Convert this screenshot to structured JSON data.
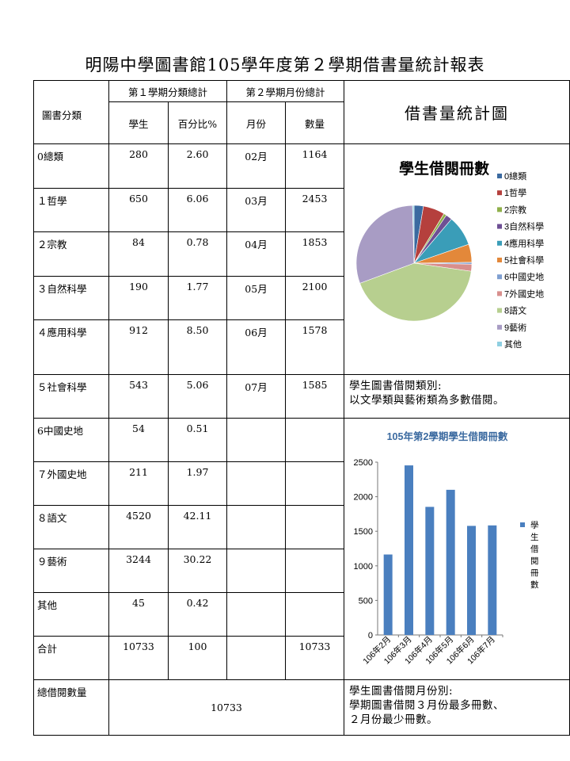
{
  "title": "明陽中學圖書館105學年度第２學期借書量統計報表",
  "table": {
    "col_category": "圖書分類",
    "sem1_header": "第１學期分類總計",
    "sem2_header": "第２學期月份總計",
    "col_students": "學生",
    "col_percent": "百分比%",
    "col_month": "月份",
    "col_count": "數量",
    "rows": [
      {
        "category": "0總類",
        "students": "280",
        "percent": "2.60",
        "month": "02月",
        "count": "1164"
      },
      {
        "category": "１哲學",
        "students": "650",
        "percent": "6.06",
        "month": "03月",
        "count": "2453"
      },
      {
        "category": "２宗教",
        "students": "84",
        "percent": "0.78",
        "month": "04月",
        "count": "1853"
      },
      {
        "category": "３自然科學",
        "students": "190",
        "percent": "1.77",
        "month": "05月",
        "count": "2100"
      },
      {
        "category": "４應用科學",
        "students": "912",
        "percent": "8.50",
        "month": "06月",
        "count": "1578"
      },
      {
        "category": "５社會科學",
        "students": "543",
        "percent": "5.06",
        "month": "07月",
        "count": "1585"
      },
      {
        "category": "6中國史地",
        "students": "54",
        "percent": "0.51",
        "month": "",
        "count": ""
      },
      {
        "category": "７外國史地",
        "students": "211",
        "percent": "1.97",
        "month": "",
        "count": ""
      },
      {
        "category": "８語文",
        "students": "4520",
        "percent": "42.11",
        "month": "",
        "count": ""
      },
      {
        "category": "９藝術",
        "students": "3244",
        "percent": "30.22",
        "month": "",
        "count": ""
      },
      {
        "category": "其他",
        "students": "45",
        "percent": "0.42",
        "month": "",
        "count": ""
      }
    ],
    "total_label": "合計",
    "total_students": "10733",
    "total_percent": "100",
    "total_count": "10733",
    "grand_total_label": "總借閱數量",
    "grand_total_value": "10733"
  },
  "right_panel": {
    "chart_heading": "借書量統計圖",
    "note1": "學生圖書借閱類別:\n以文學類與藝術類為多數借閱。",
    "note2": "學生圖書借閱月份別:\n學期圖書借閱３月份最多冊數、\n２月份最少冊數。"
  },
  "chart_data": [
    {
      "type": "pie",
      "title": "學生借閱冊數",
      "categories": [
        "0總類",
        "1哲學",
        "2宗教",
        "3自然科學",
        "4應用科學",
        "5社會科學",
        "6中國史地",
        "7外國史地",
        "8語文",
        "9藝術",
        "其他"
      ],
      "values": [
        280,
        650,
        84,
        190,
        912,
        543,
        54,
        211,
        4520,
        3244,
        45
      ],
      "colors": [
        "#3b6aa0",
        "#b5403d",
        "#8fb04a",
        "#6e4f94",
        "#3a9db8",
        "#e3883a",
        "#7f9fd1",
        "#d88f8d",
        "#b7cf8f",
        "#a89cc4",
        "#8fcfe1"
      ],
      "legend_position": "right"
    },
    {
      "type": "bar",
      "title": "105年第2學期學生借閱冊數",
      "categories": [
        "106年2月",
        "106年3月",
        "106年4月",
        "106年5月",
        "106年6月",
        "106年7月"
      ],
      "series": [
        {
          "name": "學生借閱冊數",
          "values": [
            1164,
            2453,
            1853,
            2100,
            1578,
            1585
          ]
        }
      ],
      "ylim": [
        0,
        2500
      ],
      "yticks": [
        "0",
        "500",
        "1000",
        "1500",
        "2000",
        "2500"
      ],
      "bar_color": "#4a7fbf",
      "legend_position": "right",
      "grid": false
    }
  ]
}
